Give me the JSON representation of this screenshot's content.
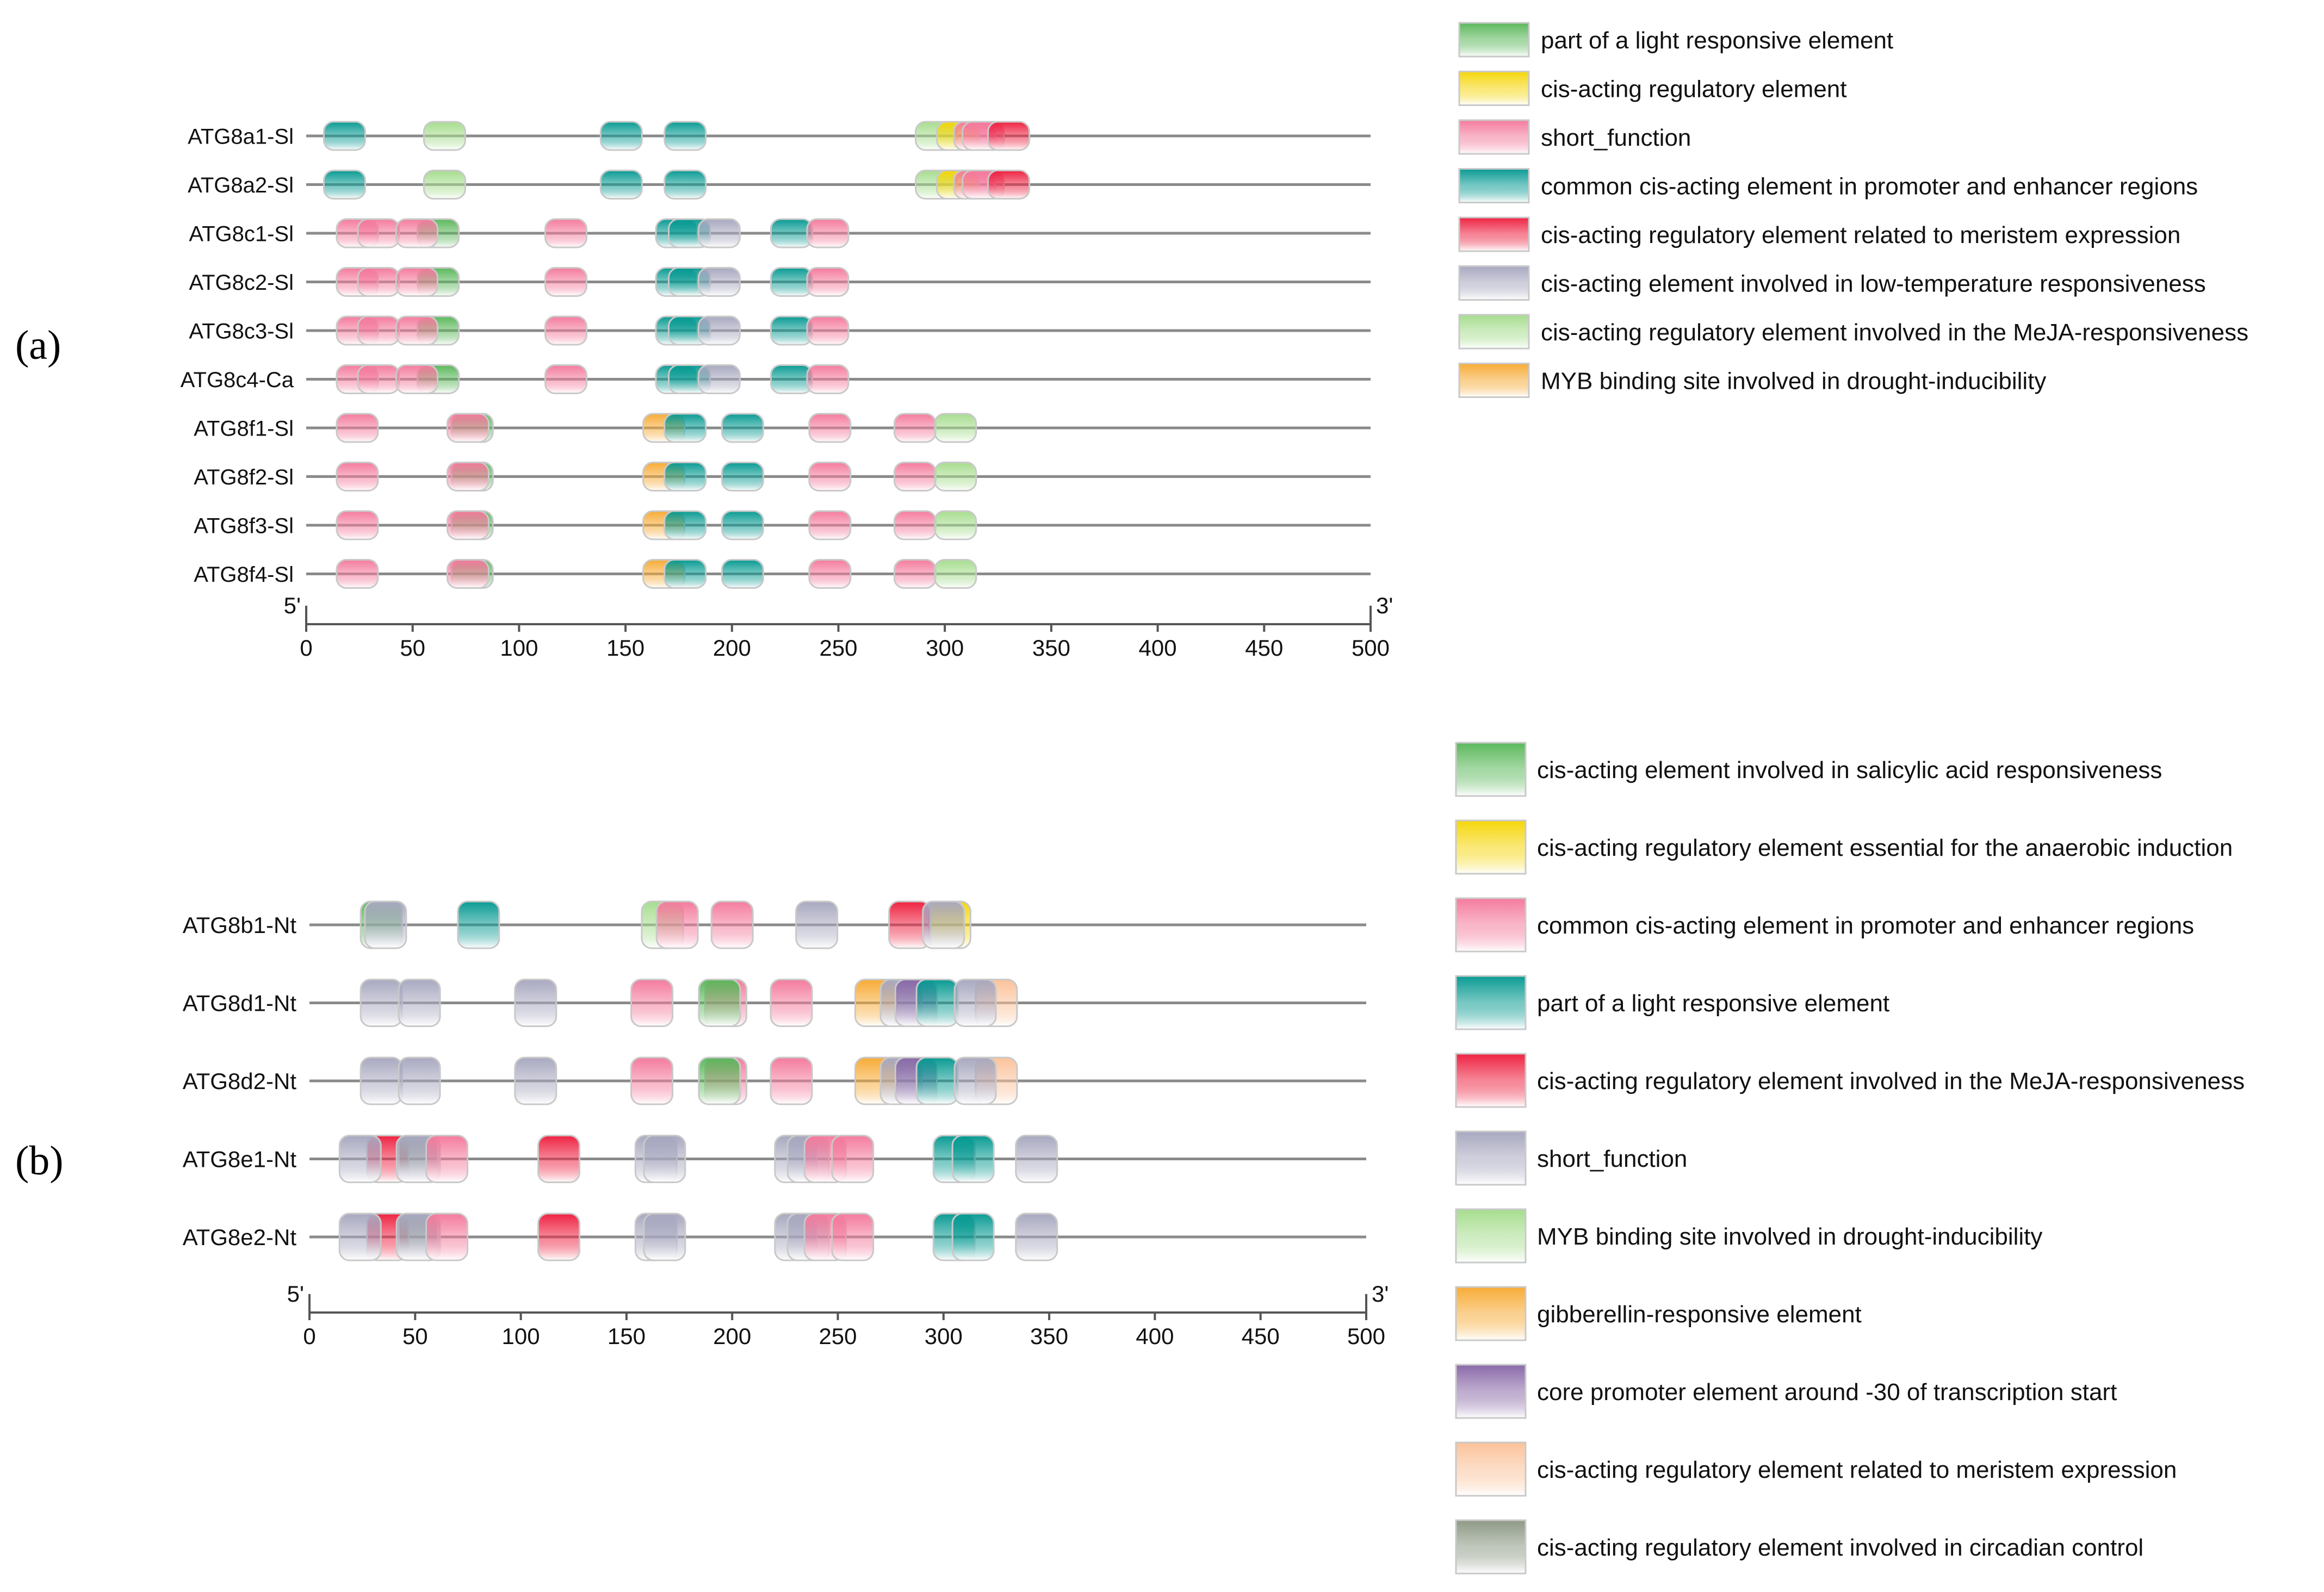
{
  "panels": [
    {
      "id": "a",
      "label": "(a)",
      "axis": {
        "min": 0,
        "max": 500,
        "ticks": [
          0,
          50,
          100,
          150,
          200,
          250,
          300,
          350,
          400,
          450,
          500
        ],
        "start_label": "5'",
        "end_label": "3'"
      },
      "legend": [
        {
          "key": "light_part",
          "label": "part of a light responsive element",
          "color": "#5cb85c"
        },
        {
          "key": "cis_reg",
          "label": "cis-acting regulatory element",
          "color": "#f5d60a"
        },
        {
          "key": "short_function",
          "label": "short_function",
          "color": "#f47b9d"
        },
        {
          "key": "common_cis",
          "label": "common cis-acting element in promoter and enhancer regions",
          "color": "#0a9b93"
        },
        {
          "key": "meristem",
          "label": "cis-acting regulatory element related to meristem expression",
          "color": "#ee2342"
        },
        {
          "key": "low_temp",
          "label": "cis-acting element involved in low-temperature responsiveness",
          "color": "#a8a8c0"
        },
        {
          "key": "meja",
          "label": "cis-acting regulatory element involved in the MeJA-responsiveness",
          "color": "#a6dd8e"
        },
        {
          "key": "myb_drought",
          "label": "MYB binding site involved in drought-inducibility",
          "color": "#f7ab36"
        }
      ],
      "genes": [
        {
          "name": "ATG8a1-Sl",
          "elements": [
            {
              "type": "common_cis",
              "pos": 18
            },
            {
              "type": "meja",
              "pos": 65
            },
            {
              "type": "common_cis",
              "pos": 148
            },
            {
              "type": "common_cis",
              "pos": 178
            },
            {
              "type": "meja",
              "pos": 296
            },
            {
              "type": "cis_reg",
              "pos": 306
            },
            {
              "type": "short_function",
              "pos": 314
            },
            {
              "type": "short_function",
              "pos": 318
            },
            {
              "type": "meristem",
              "pos": 330
            }
          ]
        },
        {
          "name": "ATG8a2-Sl",
          "elements": [
            {
              "type": "common_cis",
              "pos": 18
            },
            {
              "type": "meja",
              "pos": 65
            },
            {
              "type": "common_cis",
              "pos": 148
            },
            {
              "type": "common_cis",
              "pos": 178
            },
            {
              "type": "meja",
              "pos": 296
            },
            {
              "type": "cis_reg",
              "pos": 306
            },
            {
              "type": "short_function",
              "pos": 314
            },
            {
              "type": "short_function",
              "pos": 318
            },
            {
              "type": "meristem",
              "pos": 330
            }
          ]
        },
        {
          "name": "ATG8c1-Sl",
          "elements": [
            {
              "type": "short_function",
              "pos": 24
            },
            {
              "type": "short_function",
              "pos": 34
            },
            {
              "type": "light_part",
              "pos": 62
            },
            {
              "type": "short_function",
              "pos": 52
            },
            {
              "type": "short_function",
              "pos": 122
            },
            {
              "type": "common_cis",
              "pos": 174
            },
            {
              "type": "common_cis",
              "pos": 180
            },
            {
              "type": "low_temp",
              "pos": 194
            },
            {
              "type": "common_cis",
              "pos": 228
            },
            {
              "type": "short_function",
              "pos": 245
            }
          ]
        },
        {
          "name": "ATG8c2-Sl",
          "elements": [
            {
              "type": "short_function",
              "pos": 24
            },
            {
              "type": "short_function",
              "pos": 34
            },
            {
              "type": "light_part",
              "pos": 62
            },
            {
              "type": "short_function",
              "pos": 52
            },
            {
              "type": "short_function",
              "pos": 122
            },
            {
              "type": "common_cis",
              "pos": 174
            },
            {
              "type": "common_cis",
              "pos": 180
            },
            {
              "type": "low_temp",
              "pos": 194
            },
            {
              "type": "common_cis",
              "pos": 228
            },
            {
              "type": "short_function",
              "pos": 245
            }
          ]
        },
        {
          "name": "ATG8c3-Sl",
          "elements": [
            {
              "type": "short_function",
              "pos": 24
            },
            {
              "type": "short_function",
              "pos": 34
            },
            {
              "type": "light_part",
              "pos": 62
            },
            {
              "type": "short_function",
              "pos": 52
            },
            {
              "type": "short_function",
              "pos": 122
            },
            {
              "type": "common_cis",
              "pos": 174
            },
            {
              "type": "common_cis",
              "pos": 180
            },
            {
              "type": "low_temp",
              "pos": 194
            },
            {
              "type": "common_cis",
              "pos": 228
            },
            {
              "type": "short_function",
              "pos": 245
            }
          ]
        },
        {
          "name": "ATG8c4-Ca",
          "elements": [
            {
              "type": "short_function",
              "pos": 24
            },
            {
              "type": "short_function",
              "pos": 34
            },
            {
              "type": "light_part",
              "pos": 62
            },
            {
              "type": "short_function",
              "pos": 52
            },
            {
              "type": "short_function",
              "pos": 122
            },
            {
              "type": "common_cis",
              "pos": 174
            },
            {
              "type": "common_cis",
              "pos": 180
            },
            {
              "type": "low_temp",
              "pos": 194
            },
            {
              "type": "common_cis",
              "pos": 228
            },
            {
              "type": "short_function",
              "pos": 245
            }
          ]
        },
        {
          "name": "ATG8f1-Sl",
          "elements": [
            {
              "type": "short_function",
              "pos": 24
            },
            {
              "type": "light_part",
              "pos": 78
            },
            {
              "type": "short_function",
              "pos": 76
            },
            {
              "type": "myb_drought",
              "pos": 168
            },
            {
              "type": "common_cis",
              "pos": 178
            },
            {
              "type": "common_cis",
              "pos": 205
            },
            {
              "type": "short_function",
              "pos": 246
            },
            {
              "type": "short_function",
              "pos": 286
            },
            {
              "type": "meja",
              "pos": 305
            }
          ]
        },
        {
          "name": "ATG8f2-Sl",
          "elements": [
            {
              "type": "short_function",
              "pos": 24
            },
            {
              "type": "light_part",
              "pos": 78
            },
            {
              "type": "short_function",
              "pos": 76
            },
            {
              "type": "myb_drought",
              "pos": 168
            },
            {
              "type": "common_cis",
              "pos": 178
            },
            {
              "type": "common_cis",
              "pos": 205
            },
            {
              "type": "short_function",
              "pos": 246
            },
            {
              "type": "short_function",
              "pos": 286
            },
            {
              "type": "meja",
              "pos": 305
            }
          ]
        },
        {
          "name": "ATG8f3-Sl",
          "elements": [
            {
              "type": "short_function",
              "pos": 24
            },
            {
              "type": "light_part",
              "pos": 78
            },
            {
              "type": "short_function",
              "pos": 76
            },
            {
              "type": "myb_drought",
              "pos": 168
            },
            {
              "type": "common_cis",
              "pos": 178
            },
            {
              "type": "common_cis",
              "pos": 205
            },
            {
              "type": "short_function",
              "pos": 246
            },
            {
              "type": "short_function",
              "pos": 286
            },
            {
              "type": "meja",
              "pos": 305
            }
          ]
        },
        {
          "name": "ATG8f4-Sl",
          "elements": [
            {
              "type": "short_function",
              "pos": 24
            },
            {
              "type": "light_part",
              "pos": 78
            },
            {
              "type": "short_function",
              "pos": 76
            },
            {
              "type": "myb_drought",
              "pos": 168
            },
            {
              "type": "common_cis",
              "pos": 178
            },
            {
              "type": "common_cis",
              "pos": 205
            },
            {
              "type": "short_function",
              "pos": 246
            },
            {
              "type": "short_function",
              "pos": 286
            },
            {
              "type": "meja",
              "pos": 305
            }
          ]
        }
      ]
    },
    {
      "id": "b",
      "label": "(b)",
      "axis": {
        "min": 0,
        "max": 500,
        "ticks": [
          0,
          50,
          100,
          150,
          200,
          250,
          300,
          350,
          400,
          450,
          500
        ],
        "start_label": "5'",
        "end_label": "3'"
      },
      "legend": [
        {
          "key": "salicylic",
          "label": "cis-acting element involved in salicylic acid responsiveness",
          "color": "#5cb85c"
        },
        {
          "key": "anaerobic",
          "label": "cis-acting regulatory element essential for the anaerobic induction",
          "color": "#f5d60a"
        },
        {
          "key": "common_cis",
          "label": "common cis-acting element in promoter and enhancer regions",
          "color": "#f47b9d"
        },
        {
          "key": "light_part",
          "label": "part of a light responsive element",
          "color": "#0a9b93"
        },
        {
          "key": "meja",
          "label": "cis-acting regulatory element involved in the MeJA-responsiveness",
          "color": "#ee2342"
        },
        {
          "key": "short_function",
          "label": "short_function",
          "color": "#a8a8c0"
        },
        {
          "key": "myb_drought",
          "label": "MYB binding site involved in drought-inducibility",
          "color": "#a6dd8e"
        },
        {
          "key": "gibberellin",
          "label": "gibberellin-responsive element",
          "color": "#f7ab36"
        },
        {
          "key": "tata",
          "label": "core promoter element around -30 of transcription start",
          "color": "#8a6aa8"
        },
        {
          "key": "meristem",
          "label": "cis-acting regulatory element related to meristem expression",
          "color": "#fbc29a"
        },
        {
          "key": "circadian",
          "label": "cis-acting regulatory element involved in circadian control",
          "color": "#8e9a86"
        }
      ],
      "genes": [
        {
          "name": "ATG8b1-Nt",
          "elements": [
            {
              "type": "salicylic",
              "pos": 34
            },
            {
              "type": "short_function",
              "pos": 36
            },
            {
              "type": "light_part",
              "pos": 80
            },
            {
              "type": "myb_drought",
              "pos": 167
            },
            {
              "type": "common_cis",
              "pos": 174
            },
            {
              "type": "common_cis",
              "pos": 200
            },
            {
              "type": "short_function",
              "pos": 240
            },
            {
              "type": "anaerobic",
              "pos": 303
            },
            {
              "type": "meja",
              "pos": 284
            },
            {
              "type": "short_function",
              "pos": 300
            }
          ]
        },
        {
          "name": "ATG8d1-Nt",
          "elements": [
            {
              "type": "short_function",
              "pos": 34
            },
            {
              "type": "short_function",
              "pos": 52
            },
            {
              "type": "short_function",
              "pos": 107
            },
            {
              "type": "common_cis",
              "pos": 162
            },
            {
              "type": "common_cis",
              "pos": 197
            },
            {
              "type": "salicylic",
              "pos": 194
            },
            {
              "type": "common_cis",
              "pos": 228
            },
            {
              "type": "gibberellin",
              "pos": 268
            },
            {
              "type": "short_function",
              "pos": 280
            },
            {
              "type": "tata",
              "pos": 287
            },
            {
              "type": "light_part",
              "pos": 297
            },
            {
              "type": "meristem",
              "pos": 325
            },
            {
              "type": "short_function",
              "pos": 315
            }
          ]
        },
        {
          "name": "ATG8d2-Nt",
          "elements": [
            {
              "type": "short_function",
              "pos": 34
            },
            {
              "type": "short_function",
              "pos": 52
            },
            {
              "type": "short_function",
              "pos": 107
            },
            {
              "type": "common_cis",
              "pos": 162
            },
            {
              "type": "common_cis",
              "pos": 197
            },
            {
              "type": "salicylic",
              "pos": 194
            },
            {
              "type": "common_cis",
              "pos": 228
            },
            {
              "type": "gibberellin",
              "pos": 268
            },
            {
              "type": "short_function",
              "pos": 280
            },
            {
              "type": "tata",
              "pos": 287
            },
            {
              "type": "light_part",
              "pos": 297
            },
            {
              "type": "meristem",
              "pos": 325
            },
            {
              "type": "short_function",
              "pos": 315
            }
          ]
        },
        {
          "name": "ATG8e1-Nt",
          "elements": [
            {
              "type": "meja",
              "pos": 37
            },
            {
              "type": "short_function",
              "pos": 24
            },
            {
              "type": "circadian",
              "pos": 52
            },
            {
              "type": "short_function",
              "pos": 51
            },
            {
              "type": "common_cis",
              "pos": 65
            },
            {
              "type": "meja",
              "pos": 118
            },
            {
              "type": "short_function",
              "pos": 164
            },
            {
              "type": "short_function",
              "pos": 168
            },
            {
              "type": "short_function",
              "pos": 230
            },
            {
              "type": "short_function",
              "pos": 236
            },
            {
              "type": "common_cis",
              "pos": 244
            },
            {
              "type": "common_cis",
              "pos": 257
            },
            {
              "type": "light_part",
              "pos": 305
            },
            {
              "type": "light_part",
              "pos": 314
            },
            {
              "type": "short_function",
              "pos": 344
            }
          ]
        },
        {
          "name": "ATG8e2-Nt",
          "elements": [
            {
              "type": "meja",
              "pos": 37
            },
            {
              "type": "short_function",
              "pos": 24
            },
            {
              "type": "circadian",
              "pos": 52
            },
            {
              "type": "short_function",
              "pos": 51
            },
            {
              "type": "common_cis",
              "pos": 65
            },
            {
              "type": "meja",
              "pos": 118
            },
            {
              "type": "short_function",
              "pos": 164
            },
            {
              "type": "short_function",
              "pos": 168
            },
            {
              "type": "short_function",
              "pos": 230
            },
            {
              "type": "short_function",
              "pos": 236
            },
            {
              "type": "common_cis",
              "pos": 244
            },
            {
              "type": "common_cis",
              "pos": 257
            },
            {
              "type": "light_part",
              "pos": 305
            },
            {
              "type": "light_part",
              "pos": 314
            },
            {
              "type": "short_function",
              "pos": 344
            }
          ]
        }
      ]
    }
  ]
}
